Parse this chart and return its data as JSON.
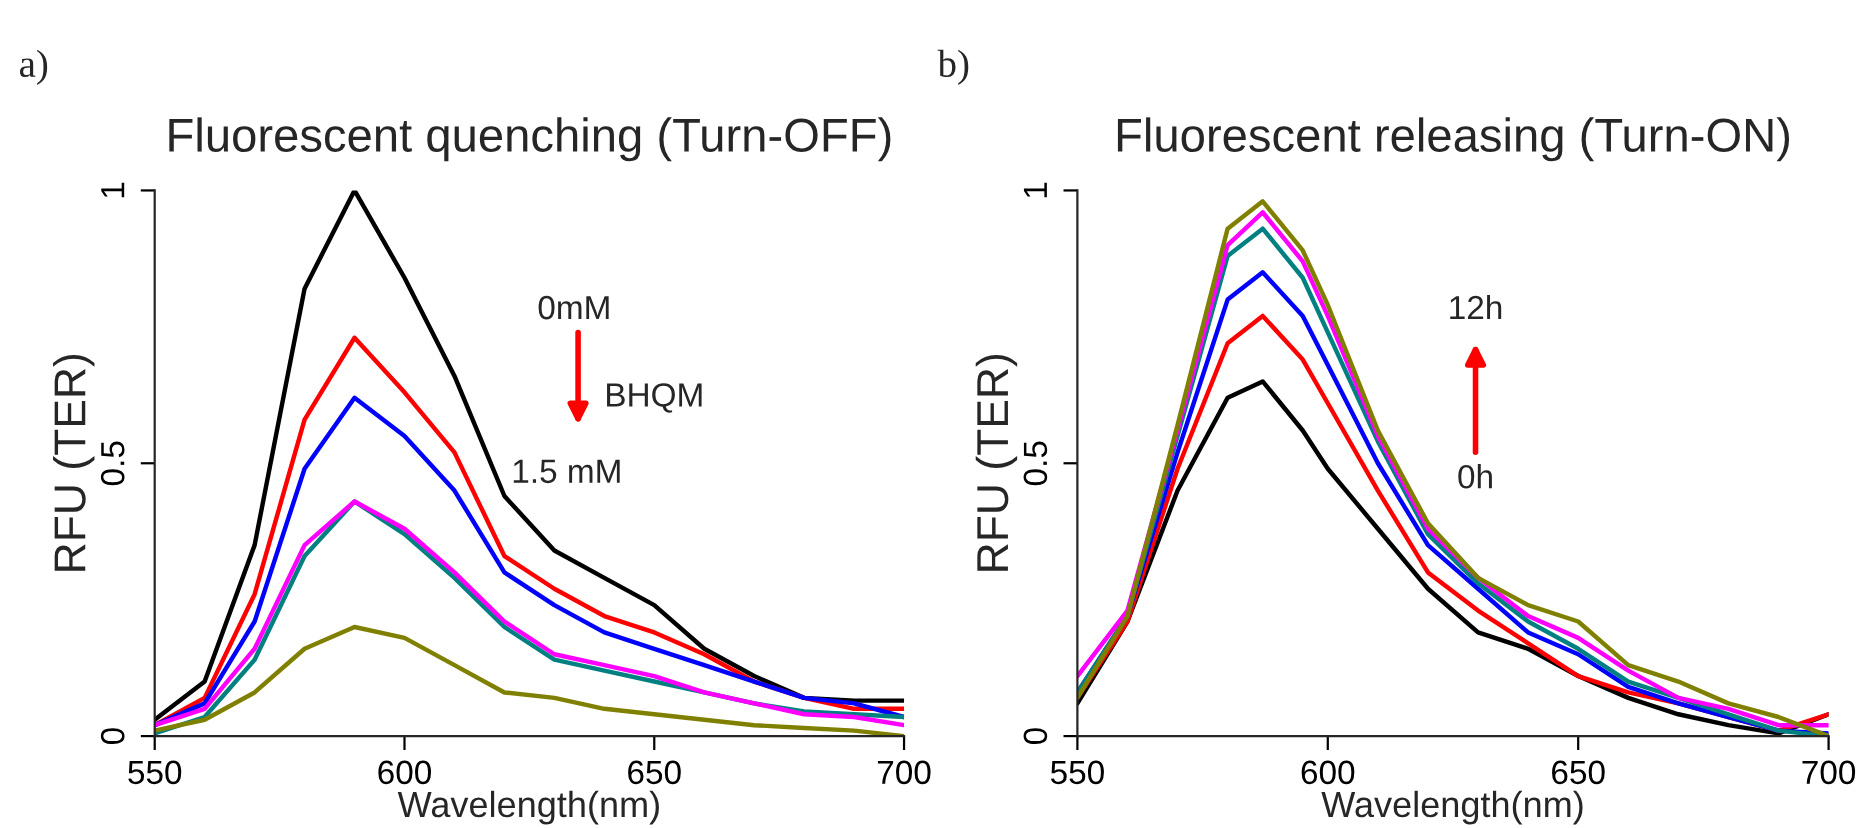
{
  "chart_data": [
    {
      "type": "line",
      "title": "Fluorescent quenching (Turn-OFF)",
      "xlabel": "Wavelength(nm)",
      "ylabel": "RFU (TER)",
      "x": [
        550,
        560,
        570,
        580,
        590,
        600,
        610,
        620,
        630,
        640,
        650,
        660,
        670,
        680,
        690,
        700
      ],
      "xlim": [
        550,
        700
      ],
      "xticks": [
        550,
        600,
        650,
        700
      ],
      "ylim": [
        0,
        1
      ],
      "yticks": [
        0,
        0.5,
        1
      ],
      "grid": false,
      "legend": false,
      "annotations": [
        "a)",
        "0mM",
        "BHQM",
        "1.5 mM"
      ],
      "series": [
        {
          "color": "#000000",
          "values": [
            0.03,
            0.1,
            0.35,
            0.82,
            1.0,
            0.84,
            0.66,
            0.44,
            0.34,
            0.29,
            0.24,
            0.16,
            0.11,
            0.07,
            0.065,
            0.065
          ]
        },
        {
          "color": "#ff0000",
          "values": [
            0.02,
            0.07,
            0.26,
            0.58,
            0.73,
            0.63,
            0.52,
            0.33,
            0.27,
            0.22,
            0.19,
            0.15,
            0.1,
            0.07,
            0.05,
            0.05
          ]
        },
        {
          "color": "#0000ff",
          "values": [
            0.02,
            0.06,
            0.21,
            0.49,
            0.62,
            0.55,
            0.45,
            0.3,
            0.24,
            0.19,
            0.16,
            0.13,
            0.1,
            0.07,
            0.06,
            0.035
          ]
        },
        {
          "color": "#008080",
          "values": [
            0.005,
            0.035,
            0.14,
            0.33,
            0.43,
            0.37,
            0.29,
            0.2,
            0.14,
            0.12,
            0.1,
            0.08,
            0.06,
            0.045,
            0.04,
            0.035
          ]
        },
        {
          "color": "#ff00ff",
          "values": [
            0.02,
            0.05,
            0.16,
            0.35,
            0.43,
            0.38,
            0.3,
            0.21,
            0.15,
            0.13,
            0.11,
            0.08,
            0.06,
            0.04,
            0.035,
            0.02
          ]
        },
        {
          "color": "#808000",
          "values": [
            0.01,
            0.03,
            0.08,
            0.16,
            0.2,
            0.18,
            0.13,
            0.08,
            0.07,
            0.05,
            0.04,
            0.03,
            0.02,
            0.015,
            0.01,
            0.0
          ]
        }
      ]
    },
    {
      "type": "line",
      "title": "Fluorescent releasing (Turn-ON)",
      "xlabel": "Wavelength(nm)",
      "ylabel": "RFU (TER)",
      "x": [
        550,
        560,
        570,
        580,
        587,
        595,
        600,
        610,
        620,
        630,
        640,
        650,
        660,
        670,
        680,
        690,
        700
      ],
      "xlim": [
        550,
        700
      ],
      "xticks": [
        550,
        600,
        650,
        700
      ],
      "ylim": [
        0,
        1
      ],
      "yticks": [
        0,
        0.5,
        1
      ],
      "grid": false,
      "legend": false,
      "annotations": [
        "b)",
        "12h",
        "0h"
      ],
      "series": [
        {
          "color": "#000000",
          "values": [
            0.06,
            0.21,
            0.45,
            0.62,
            0.65,
            0.56,
            0.49,
            0.38,
            0.27,
            0.19,
            0.16,
            0.11,
            0.07,
            0.04,
            0.02,
            0.005,
            0.04
          ]
        },
        {
          "color": "#ff0000",
          "values": [
            0.07,
            0.21,
            0.49,
            0.72,
            0.77,
            0.69,
            0.61,
            0.45,
            0.3,
            0.23,
            0.17,
            0.11,
            0.08,
            0.06,
            0.035,
            0.01,
            0.04
          ]
        },
        {
          "color": "#0000ff",
          "values": [
            0.08,
            0.22,
            0.52,
            0.8,
            0.85,
            0.77,
            0.68,
            0.5,
            0.35,
            0.27,
            0.19,
            0.15,
            0.09,
            0.06,
            0.035,
            0.01,
            0.005
          ]
        },
        {
          "color": "#008080",
          "values": [
            0.08,
            0.22,
            0.55,
            0.88,
            0.93,
            0.84,
            0.74,
            0.54,
            0.37,
            0.28,
            0.21,
            0.16,
            0.1,
            0.07,
            0.04,
            0.01,
            0.0
          ]
        },
        {
          "color": "#ff00ff",
          "values": [
            0.11,
            0.23,
            0.56,
            0.9,
            0.96,
            0.87,
            0.77,
            0.55,
            0.38,
            0.29,
            0.22,
            0.18,
            0.12,
            0.07,
            0.05,
            0.02,
            0.02
          ]
        },
        {
          "color": "#808000",
          "values": [
            0.07,
            0.22,
            0.57,
            0.93,
            0.98,
            0.89,
            0.79,
            0.56,
            0.39,
            0.29,
            0.24,
            0.21,
            0.13,
            0.1,
            0.06,
            0.035,
            0.0
          ]
        }
      ]
    }
  ]
}
